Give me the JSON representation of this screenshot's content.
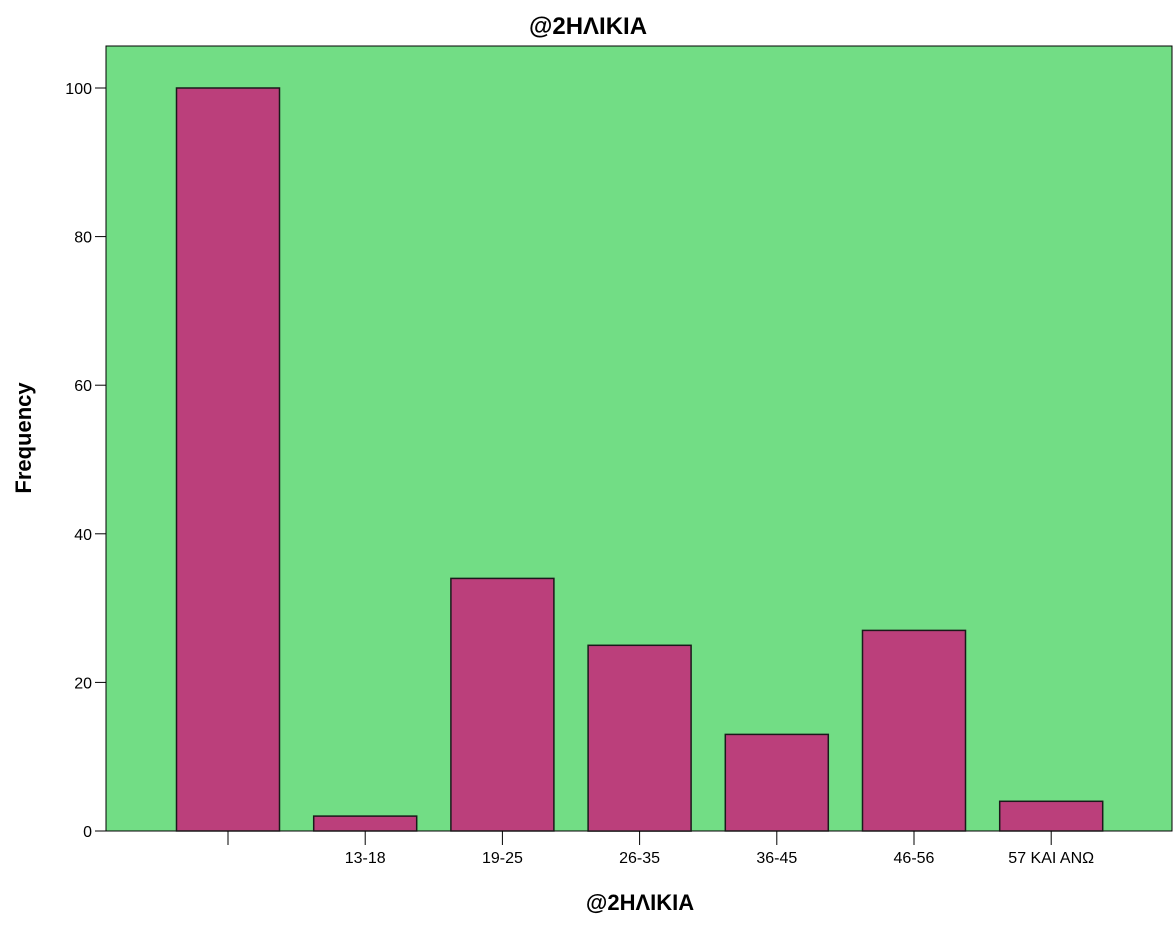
{
  "chart_data": {
    "type": "bar",
    "title": "@2ΗΛΙΚΙΑ",
    "xlabel": "@2ΗΛΙΚΙΑ",
    "ylabel": "Frequency",
    "categories": [
      "",
      "13-18",
      "19-25",
      "26-35",
      "36-45",
      "46-56",
      "57 ΚΑΙ ΑΝΩ"
    ],
    "values": [
      100,
      2,
      34,
      25,
      13,
      27,
      4
    ],
    "ylim": [
      0,
      105
    ],
    "yticks": [
      0,
      20,
      40,
      60,
      80,
      100
    ],
    "grid": false,
    "legend": "none",
    "colors": {
      "plot_background": "#72dd85",
      "bar_fill": "#bb3f7b",
      "bar_stroke": "#1a1a1a",
      "axis": "#000000"
    }
  }
}
